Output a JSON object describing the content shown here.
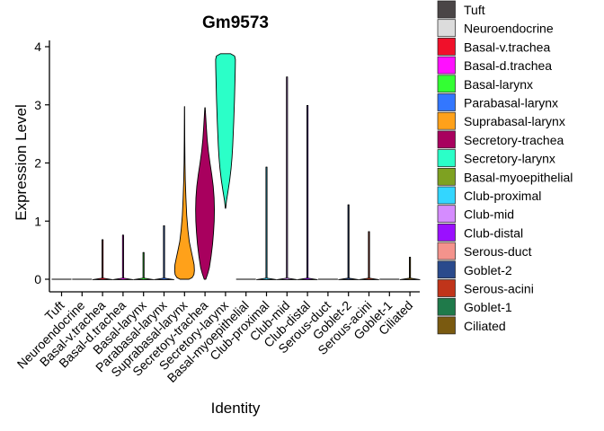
{
  "chart_data": {
    "type": "violin",
    "title": "Gm9573",
    "xlabel": "Identity",
    "ylabel": "Expression Level",
    "ylim": [
      0,
      4
    ],
    "yticks": [
      0,
      1,
      2,
      3,
      4
    ],
    "legend_position": "right",
    "series": [
      {
        "name": "Tuft",
        "color": "#4a4546",
        "max": 0,
        "shape": "flat"
      },
      {
        "name": "Neuroendocrine",
        "color": "#dcdcdc",
        "max": 0,
        "shape": "flat"
      },
      {
        "name": "Basal-v.trachea",
        "color": "#f0102a",
        "max": 0.68,
        "shape": "flat"
      },
      {
        "name": "Basal-d.trachea",
        "color": "#ff10ff",
        "max": 0.76,
        "shape": "flat"
      },
      {
        "name": "Basal-larynx",
        "color": "#33ff33",
        "max": 0.46,
        "shape": "flat"
      },
      {
        "name": "Parabasal-larynx",
        "color": "#3377ff",
        "max": 0.92,
        "shape": "flat"
      },
      {
        "name": "Suprabasal-larynx",
        "color": "#ffa11a",
        "max": 2.97,
        "shape": "suprabasal"
      },
      {
        "name": "Secretory-trachea",
        "color": "#a8005e",
        "max": 2.95,
        "shape": "secretory_trachea"
      },
      {
        "name": "Secretory-larynx",
        "color": "#2bffc8",
        "min": 1.22,
        "max": 3.88,
        "shape": "secretory_larynx"
      },
      {
        "name": "Basal-myoepithelial",
        "color": "#7ea121",
        "max": 0,
        "shape": "flat"
      },
      {
        "name": "Club-proximal",
        "color": "#33d6ff",
        "max": 1.93,
        "shape": "flat"
      },
      {
        "name": "Club-mid",
        "color": "#d58cff",
        "max": 3.48,
        "shape": "flat"
      },
      {
        "name": "Club-distal",
        "color": "#9a10ff",
        "max": 2.99,
        "shape": "flat"
      },
      {
        "name": "Serous-duct",
        "color": "#f4938c",
        "max": 0,
        "shape": "flat"
      },
      {
        "name": "Goblet-2",
        "color": "#2a4a8c",
        "max": 1.28,
        "shape": "flat"
      },
      {
        "name": "Serous-acini",
        "color": "#c0341a",
        "max": 0.82,
        "shape": "flat"
      },
      {
        "name": "Goblet-1",
        "color": "#1f7a4a",
        "max": 0,
        "shape": "flat"
      },
      {
        "name": "Ciliated",
        "color": "#7a5a10",
        "max": 0.38,
        "shape": "flat"
      }
    ]
  }
}
